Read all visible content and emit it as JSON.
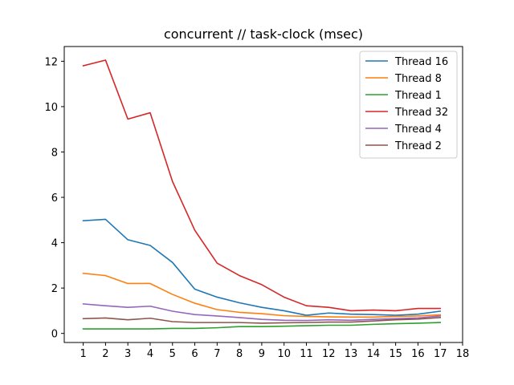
{
  "chart_data": {
    "type": "line",
    "title": "concurrent // task-clock (msec)",
    "xlabel": "",
    "ylabel": "",
    "x": [
      1,
      2,
      3,
      4,
      5,
      6,
      7,
      8,
      9,
      10,
      11,
      12,
      13,
      14,
      15,
      16,
      17
    ],
    "xticks": [
      1,
      2,
      3,
      4,
      5,
      6,
      7,
      8,
      9,
      10,
      11,
      12,
      13,
      14,
      15,
      16,
      17,
      18
    ],
    "xlim": [
      0.15,
      18.0
    ],
    "yticks": [
      0,
      2,
      4,
      6,
      8,
      10,
      12
    ],
    "ylim": [
      -0.4,
      12.65
    ],
    "grid": false,
    "legend_position": "top-right",
    "series": [
      {
        "name": "Thread 16",
        "color": "#1f77b4",
        "values": [
          4.97,
          5.03,
          4.13,
          3.88,
          3.13,
          1.95,
          1.6,
          1.35,
          1.15,
          1.0,
          0.8,
          0.9,
          0.85,
          0.83,
          0.8,
          0.85,
          0.98
        ]
      },
      {
        "name": "Thread 8",
        "color": "#ff7f0e",
        "values": [
          2.65,
          2.55,
          2.2,
          2.2,
          1.72,
          1.33,
          1.05,
          0.93,
          0.87,
          0.78,
          0.75,
          0.73,
          0.72,
          0.72,
          0.75,
          0.77,
          0.82
        ]
      },
      {
        "name": "Thread 1",
        "color": "#2ca02c",
        "values": [
          0.2,
          0.2,
          0.2,
          0.2,
          0.22,
          0.22,
          0.25,
          0.3,
          0.3,
          0.32,
          0.34,
          0.36,
          0.36,
          0.4,
          0.43,
          0.45,
          0.48
        ]
      },
      {
        "name": "Thread 32",
        "color": "#d62728",
        "values": [
          11.8,
          12.05,
          9.45,
          9.73,
          6.7,
          4.55,
          3.1,
          2.55,
          2.15,
          1.6,
          1.22,
          1.15,
          1.0,
          1.03,
          1.0,
          1.1,
          1.1
        ]
      },
      {
        "name": "Thread 4",
        "color": "#9467bd",
        "values": [
          1.3,
          1.22,
          1.15,
          1.2,
          0.98,
          0.83,
          0.77,
          0.7,
          0.62,
          0.58,
          0.57,
          0.6,
          0.58,
          0.62,
          0.65,
          0.68,
          0.77
        ]
      },
      {
        "name": "Thread 2",
        "color": "#8c564b",
        "values": [
          0.65,
          0.68,
          0.6,
          0.67,
          0.52,
          0.48,
          0.48,
          0.48,
          0.45,
          0.47,
          0.48,
          0.5,
          0.5,
          0.55,
          0.6,
          0.63,
          0.7
        ]
      }
    ]
  }
}
